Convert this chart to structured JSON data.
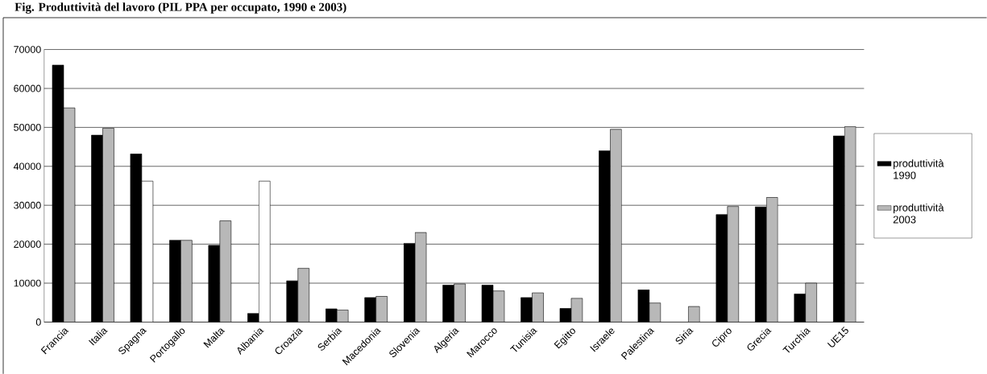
{
  "chart_data": {
    "type": "bar",
    "title": "Fig. Produttività del lavoro (PIL PPA per occupato, 1990 e 2003)",
    "categories": [
      "Francia",
      "Italia",
      "Spagna",
      "Portogallo",
      "Malta",
      "Albania",
      "Croazia",
      "Serbia",
      "Macedonia",
      "Slovenia",
      "Algeria",
      "Marocco",
      "Tunisia",
      "Egitto",
      "Israele",
      "Palestina",
      "Siria",
      "Cipro",
      "Grecia",
      "Turchia",
      "UE15"
    ],
    "series": [
      {
        "name": "produttività 1990",
        "color": "#000000",
        "values": [
          66000,
          48000,
          43200,
          21000,
          19700,
          2200,
          10600,
          3400,
          6300,
          20200,
          9500,
          9500,
          6300,
          3500,
          44000,
          8300,
          null,
          27600,
          29600,
          7200,
          47800
        ]
      },
      {
        "name": "produttività 2003",
        "color": "#b8b8b8",
        "colors": [
          "#b8b8b8",
          "#b8b8b8",
          "#ffffff",
          "#b8b8b8",
          "#b8b8b8",
          "#ffffff",
          "#b8b8b8",
          "#b8b8b8",
          "#b8b8b8",
          "#b8b8b8",
          "#b8b8b8",
          "#b8b8b8",
          "#b8b8b8",
          "#b8b8b8",
          "#b8b8b8",
          "#b8b8b8",
          "#b8b8b8",
          "#b8b8b8",
          "#b8b8b8",
          "#b8b8b8",
          "#b8b8b8"
        ],
        "values": [
          55000,
          49800,
          36200,
          21000,
          26000,
          36200,
          13800,
          3100,
          6600,
          23000,
          9800,
          8000,
          7500,
          6100,
          49500,
          4900,
          4000,
          29700,
          32000,
          10000,
          50200
        ]
      }
    ],
    "ylim": [
      0,
      70000
    ],
    "yticks": [
      0,
      10000,
      20000,
      30000,
      40000,
      50000,
      60000,
      70000
    ],
    "grid": "y",
    "legend": "right"
  }
}
